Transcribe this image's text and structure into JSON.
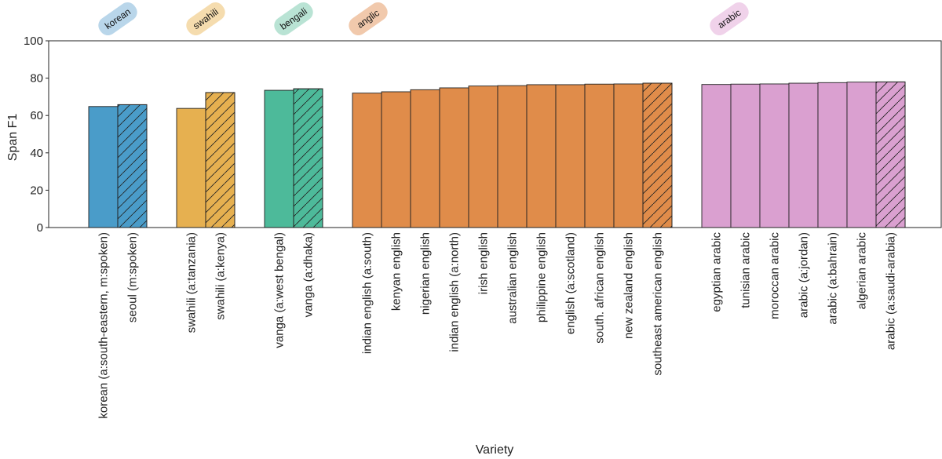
{
  "chart_data": {
    "type": "bar",
    "xlabel": "Variety",
    "ylabel": "Span F1",
    "ylim": [
      0,
      100
    ],
    "yticks": [
      0,
      20,
      40,
      60,
      80,
      100
    ],
    "grid": false,
    "hatch_meaning_shown": false,
    "groups": [
      {
        "name": "korean",
        "color": "#4a9cc9",
        "tag_color": "#b9d6ea",
        "bars": [
          {
            "label": "korean (a:south-eastern, m:spoken)",
            "value": 64.8,
            "hatched": false
          },
          {
            "label": "seoul (m:spoken)",
            "value": 65.8,
            "hatched": true
          }
        ]
      },
      {
        "name": "swahili",
        "color": "#e6b050",
        "tag_color": "#f5dcae",
        "bars": [
          {
            "label": "swahili (a:tanzania)",
            "value": 63.8,
            "hatched": false
          },
          {
            "label": "swahili (a:kenya)",
            "value": 72.3,
            "hatched": true
          }
        ]
      },
      {
        "name": "bengali",
        "color": "#4dba9a",
        "tag_color": "#b9e3d4",
        "bars": [
          {
            "label": "vanga (a:west bengal)",
            "value": 73.5,
            "hatched": false
          },
          {
            "label": "vanga (a:dhaka)",
            "value": 74.3,
            "hatched": true
          }
        ]
      },
      {
        "name": "anglic",
        "color": "#e08c4a",
        "tag_color": "#f1c9ac",
        "bars": [
          {
            "label": "indian english (a:south)",
            "value": 72.0,
            "hatched": false
          },
          {
            "label": "kenyan english",
            "value": 72.7,
            "hatched": false
          },
          {
            "label": "nigerian english",
            "value": 73.8,
            "hatched": false
          },
          {
            "label": "indian english (a:north)",
            "value": 74.8,
            "hatched": false
          },
          {
            "label": "irish english",
            "value": 75.8,
            "hatched": false
          },
          {
            "label": "australian english",
            "value": 76.0,
            "hatched": false
          },
          {
            "label": "philippine english",
            "value": 76.5,
            "hatched": false
          },
          {
            "label": "english (a:scotland)",
            "value": 76.5,
            "hatched": false
          },
          {
            "label": "south. african english",
            "value": 76.8,
            "hatched": false
          },
          {
            "label": "new zealand english",
            "value": 76.9,
            "hatched": false
          },
          {
            "label": "southeast american english",
            "value": 77.3,
            "hatched": true
          }
        ]
      },
      {
        "name": "arabic",
        "color": "#daa0d0",
        "tag_color": "#f0d2ea",
        "bars": [
          {
            "label": "egyptian arabic",
            "value": 76.6,
            "hatched": false
          },
          {
            "label": "tunisian arabic",
            "value": 76.8,
            "hatched": false
          },
          {
            "label": "moroccan arabic",
            "value": 76.9,
            "hatched": false
          },
          {
            "label": "arabic (a:jordan)",
            "value": 77.3,
            "hatched": false
          },
          {
            "label": "arabic (a:bahrain)",
            "value": 77.6,
            "hatched": false
          },
          {
            "label": "algerian arabic",
            "value": 77.9,
            "hatched": false
          },
          {
            "label": "arabic (a:saudi-arabia)",
            "value": 78.0,
            "hatched": true
          }
        ]
      }
    ]
  }
}
